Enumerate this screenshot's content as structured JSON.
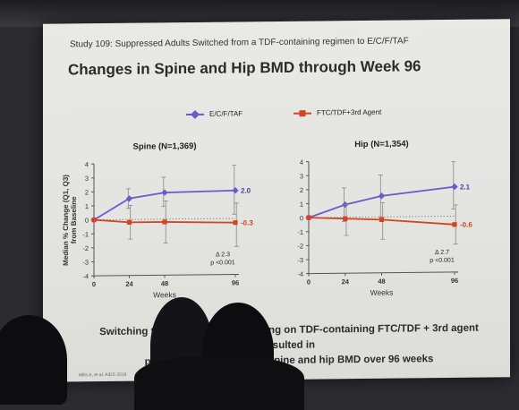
{
  "slide": {
    "subtitle": "Study 109: Suppressed Adults Switched from a TDF-containing regimen to E/C/F/TAF",
    "title": "Changes in Spine and Hip BMD through Week 96",
    "caption_line1": "Switching to E/C/F/TAF vs. remaining on TDF-containing FTC/TDF + 3rd agent resulted in",
    "caption_line2": "progressive increases in spine and hip BMD over 96 weeks",
    "footnote": "Mills A, et al. AIDS 2016"
  },
  "legend": {
    "series1": "E/C/F/TAF",
    "series2": "FTC/TDF+3rd Agent"
  },
  "colors": {
    "series1": "#6a5acd",
    "series2": "#d2451e",
    "grid": "#bbbbbb",
    "dotted": "#777777",
    "axis": "#555555"
  },
  "chart_data": [
    {
      "type": "line",
      "title": "Spine (N=1,369)",
      "xlabel": "Weeks",
      "ylabel": "Median % Change (Q1, Q3) from Baseline",
      "x": [
        0,
        24,
        48,
        96
      ],
      "ylim": [
        -4,
        4
      ],
      "yticks": [
        -4,
        -3,
        -2,
        -1,
        0,
        1,
        2,
        3,
        4
      ],
      "series": [
        {
          "name": "E/C/F/TAF",
          "values": [
            0,
            1.5,
            1.9,
            2.0
          ],
          "q1": [
            0,
            0.8,
            0.9,
            0.3
          ],
          "q3": [
            0,
            2.2,
            3.0,
            3.8
          ]
        },
        {
          "name": "FTC/TDF+3rd Agent",
          "values": [
            0,
            -0.2,
            -0.2,
            -0.3
          ],
          "q1": [
            0,
            -1.4,
            -1.7,
            -2.0
          ],
          "q3": [
            0,
            1.0,
            1.3,
            1.1
          ]
        }
      ],
      "end_labels": [
        "2.0",
        "-0.3"
      ],
      "delta": "Δ 2.3",
      "pvalue": "p <0.001"
    },
    {
      "type": "line",
      "title": "Hip (N=1,354)",
      "xlabel": "Weeks",
      "ylabel": "",
      "x": [
        0,
        24,
        48,
        96
      ],
      "ylim": [
        -4,
        4
      ],
      "yticks": [
        -4,
        -3,
        -2,
        -1,
        0,
        1,
        2,
        3,
        4
      ],
      "series": [
        {
          "name": "E/C/F/TAF",
          "values": [
            0,
            0.9,
            1.5,
            2.1
          ],
          "q1": [
            0,
            -0.3,
            0.0,
            0.5
          ],
          "q3": [
            0,
            2.1,
            3.0,
            3.9
          ]
        },
        {
          "name": "FTC/TDF+3rd Agent",
          "values": [
            0,
            -0.1,
            -0.2,
            -0.6
          ],
          "q1": [
            0,
            -1.3,
            -1.6,
            -2.0
          ],
          "q3": [
            0,
            0.9,
            1.0,
            0.8
          ]
        }
      ],
      "end_labels": [
        "2.1",
        "-0.6"
      ],
      "delta": "Δ 2.7",
      "pvalue": "p <0.001"
    }
  ]
}
